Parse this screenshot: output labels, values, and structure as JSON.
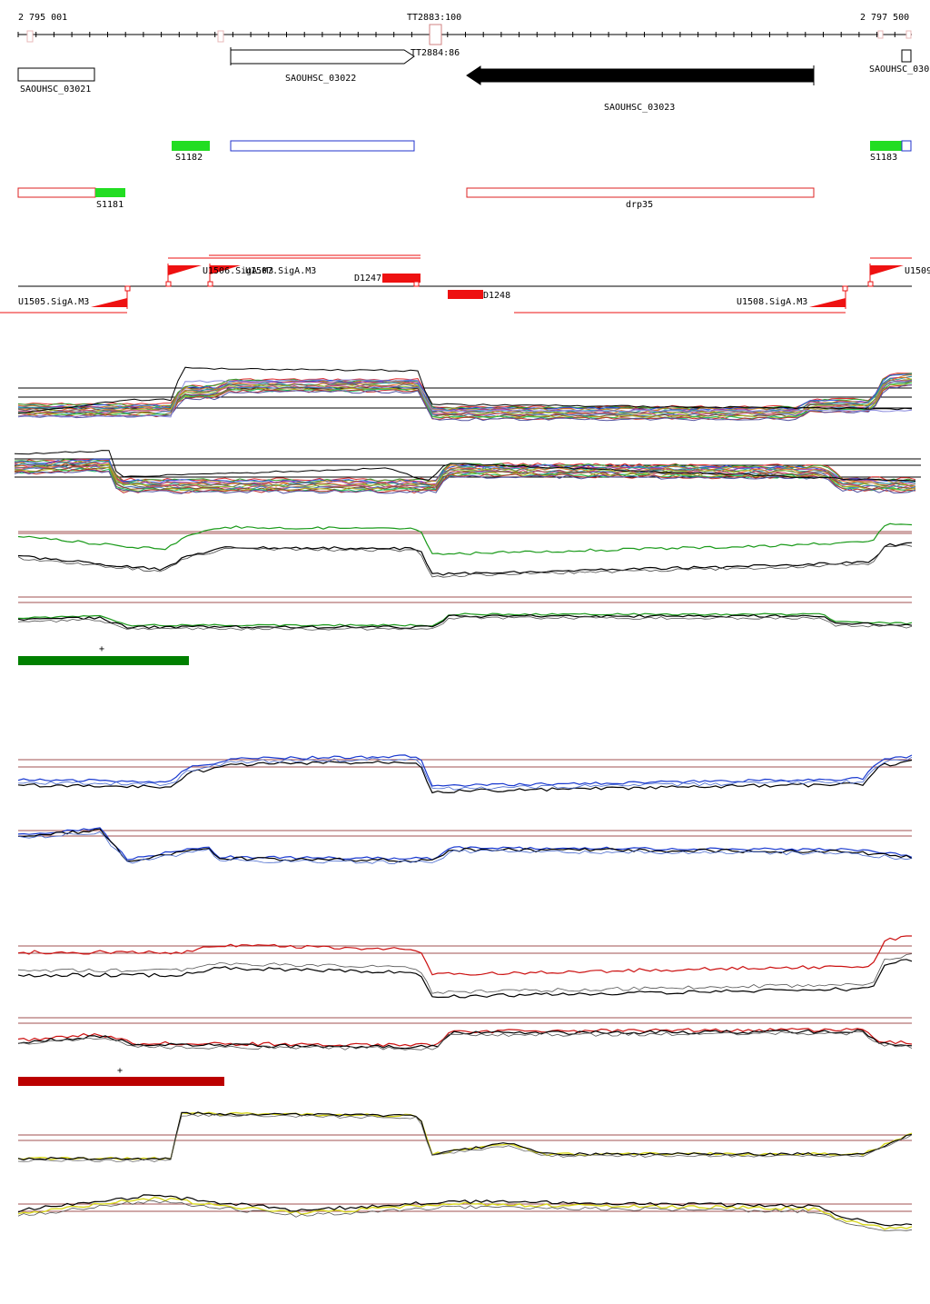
{
  "coordinates": {
    "start": "2 795 001",
    "end": "2 797 500"
  },
  "terminators": [
    {
      "label": "TT2883:100"
    },
    {
      "label": "TT2884:86"
    }
  ],
  "genes": [
    {
      "label": "SAOUHSC_03021",
      "strand": "+",
      "filled": false
    },
    {
      "label": "SAOUHSC_03022",
      "strand": "+",
      "filled": false
    },
    {
      "label": "SAOUHSC_03023",
      "strand": "-",
      "filled": true
    },
    {
      "label": "SAOUHSC_030",
      "strand": "+",
      "filled": false
    }
  ],
  "segments": [
    {
      "label": "S1182",
      "color": "#22dd22"
    },
    {
      "label": "S1183",
      "color": "#22dd22"
    },
    {
      "label": "S1181",
      "color": "#22dd22"
    },
    {
      "label": "drp35",
      "color": "#dd2222"
    }
  ],
  "tus": [
    {
      "label": "U1506.SigA.M3"
    },
    {
      "label": "U1507.SigA.M3"
    },
    {
      "label": "D1247"
    },
    {
      "label": "D1248"
    },
    {
      "label": "U1505.SigA.M3"
    },
    {
      "label": "U1508.SigA.M3"
    },
    {
      "label": "U1509"
    }
  ],
  "bar_marker": "+",
  "colors": {
    "green_bar": "#008000",
    "red_bar": "#bb0000",
    "green_line": "#1a9a1a",
    "blue_line": "#1a3ad0",
    "red_line": "#cc1111",
    "yellow_line": "#d8d820",
    "ref_line": "#a05050",
    "feature_red": "#ee1111"
  }
}
